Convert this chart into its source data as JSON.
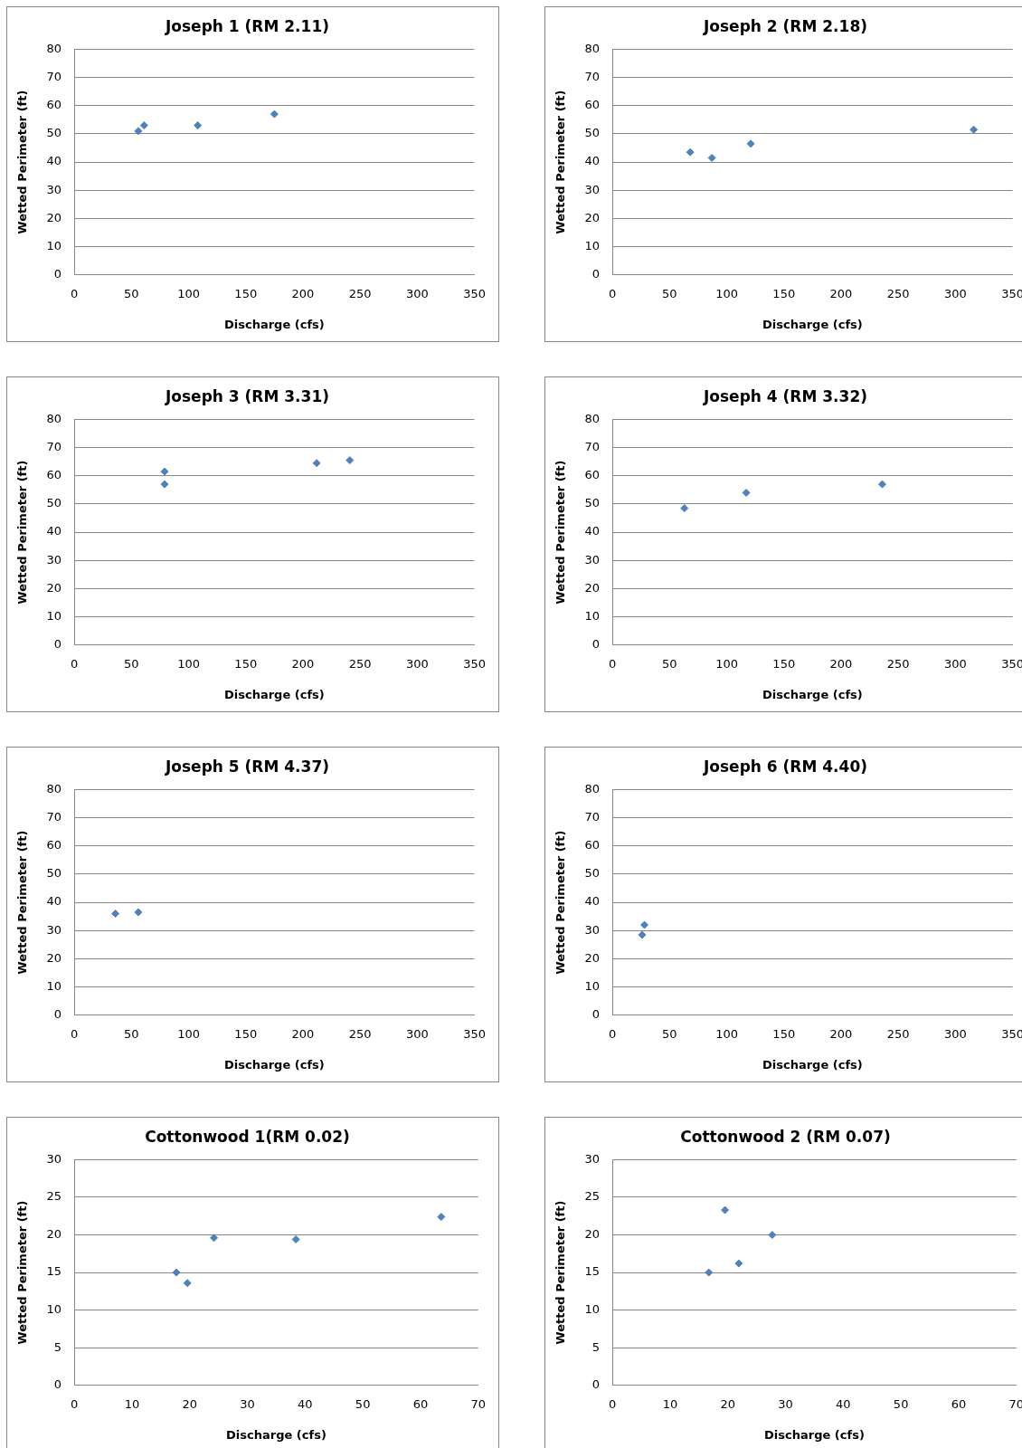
{
  "chart_data": [
    {
      "type": "scatter",
      "title": "Joseph 1 (RM 2.11)",
      "xlabel": "Discharge (cfs)",
      "ylabel": "Wetted Perimeter (ft)",
      "x": [
        56,
        61,
        108,
        175
      ],
      "values": [
        51,
        53,
        53,
        57
      ],
      "color": "#4f81bd",
      "marker": "diamond",
      "grid": "y",
      "xlim": [
        0,
        350
      ],
      "xticks": [
        0,
        50,
        100,
        150,
        200,
        250,
        300,
        350
      ],
      "ylim": [
        0,
        80
      ],
      "yticks": [
        0,
        10,
        20,
        30,
        40,
        50,
        60,
        70,
        80
      ]
    },
    {
      "type": "scatter",
      "title": "Joseph 2 (RM 2.18)",
      "xlabel": "Discharge (cfs)",
      "ylabel": "Wetted Perimeter (ft)",
      "x": [
        68,
        87,
        121,
        316
      ],
      "values": [
        43.5,
        41.5,
        46.5,
        51.5
      ],
      "color": "#4f81bd",
      "marker": "diamond",
      "grid": "y",
      "xlim": [
        0,
        350
      ],
      "xticks": [
        0,
        50,
        100,
        150,
        200,
        250,
        300,
        350
      ],
      "ylim": [
        0,
        80
      ],
      "yticks": [
        0,
        10,
        20,
        30,
        40,
        50,
        60,
        70,
        80
      ]
    },
    {
      "type": "scatter",
      "title": "Joseph 3 (RM 3.31)",
      "xlabel": "Discharge (cfs)",
      "ylabel": "Wetted Perimeter (ft)",
      "x": [
        79,
        79,
        212,
        241
      ],
      "values": [
        61.5,
        57,
        64.5,
        65.5
      ],
      "color": "#4f81bd",
      "marker": "diamond",
      "grid": "y",
      "xlim": [
        0,
        350
      ],
      "xticks": [
        0,
        50,
        100,
        150,
        200,
        250,
        300,
        350
      ],
      "ylim": [
        0,
        80
      ],
      "yticks": [
        0,
        10,
        20,
        30,
        40,
        50,
        60,
        70,
        80
      ]
    },
    {
      "type": "scatter",
      "title": "Joseph 4 (RM 3.32)",
      "xlabel": "Discharge (cfs)",
      "ylabel": "Wetted Perimeter (ft)",
      "x": [
        63,
        117,
        236
      ],
      "values": [
        48.5,
        54,
        57
      ],
      "color": "#4f81bd",
      "marker": "diamond",
      "grid": "y",
      "xlim": [
        0,
        350
      ],
      "xticks": [
        0,
        50,
        100,
        150,
        200,
        250,
        300,
        350
      ],
      "ylim": [
        0,
        80
      ],
      "yticks": [
        0,
        10,
        20,
        30,
        40,
        50,
        60,
        70,
        80
      ]
    },
    {
      "type": "scatter",
      "title": "Joseph 5 (RM 4.37)",
      "xlabel": "Discharge (cfs)",
      "ylabel": "Wetted Perimeter (ft)",
      "x": [
        36,
        56
      ],
      "values": [
        36,
        36.5
      ],
      "color": "#4f81bd",
      "marker": "diamond",
      "grid": "y",
      "xlim": [
        0,
        350
      ],
      "xticks": [
        0,
        50,
        100,
        150,
        200,
        250,
        300,
        350
      ],
      "ylim": [
        0,
        80
      ],
      "yticks": [
        0,
        10,
        20,
        30,
        40,
        50,
        60,
        70,
        80
      ]
    },
    {
      "type": "scatter",
      "title": "Joseph 6 (RM 4.40)",
      "xlabel": "Discharge (cfs)",
      "ylabel": "Wetted Perimeter (ft)",
      "x": [
        26,
        28
      ],
      "values": [
        28.5,
        32
      ],
      "color": "#4f81bd",
      "marker": "diamond",
      "grid": "y",
      "xlim": [
        0,
        350
      ],
      "xticks": [
        0,
        50,
        100,
        150,
        200,
        250,
        300,
        350
      ],
      "ylim": [
        0,
        80
      ],
      "yticks": [
        0,
        10,
        20,
        30,
        40,
        50,
        60,
        70,
        80
      ]
    },
    {
      "type": "scatter",
      "title": "Cottonwood 1(RM 0.02)",
      "xlabel": "Discharge (cfs)",
      "ylabel": "Wetted Perimeter (ft)",
      "x": [
        17.7,
        19.6,
        24.2,
        38.4,
        63.6
      ],
      "values": [
        15,
        13.6,
        19.6,
        19.4,
        22.4
      ],
      "color": "#4f81bd",
      "marker": "diamond",
      "grid": "y",
      "xlim": [
        0,
        70
      ],
      "xticks": [
        0,
        10,
        20,
        30,
        40,
        50,
        60,
        70
      ],
      "ylim": [
        0,
        30
      ],
      "yticks": [
        0,
        5,
        10,
        15,
        20,
        25,
        30
      ]
    },
    {
      "type": "scatter",
      "title": "Cottonwood 2 (RM 0.07)",
      "xlabel": "Discharge (cfs)",
      "ylabel": "Wetted Perimeter (ft)",
      "x": [
        16.7,
        19.5,
        21.9,
        27.7
      ],
      "values": [
        15,
        23.3,
        16.2,
        20
      ],
      "color": "#4f81bd",
      "marker": "diamond",
      "grid": "y",
      "xlim": [
        0,
        70
      ],
      "xticks": [
        0,
        10,
        20,
        30,
        40,
        50,
        60,
        70
      ],
      "ylim": [
        0,
        30
      ],
      "yticks": [
        0,
        5,
        10,
        15,
        20,
        25,
        30
      ]
    }
  ]
}
